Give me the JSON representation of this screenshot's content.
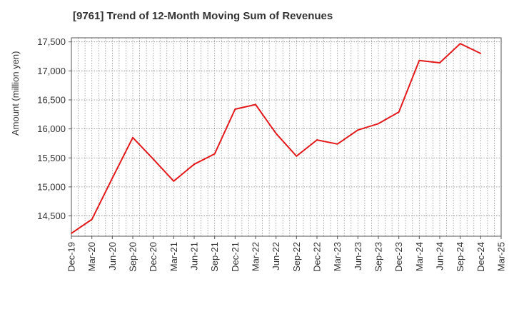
{
  "chart_data": {
    "type": "line",
    "title": "[9761]  Trend of 12-Month Moving Sum of Revenues",
    "xlabel": "",
    "ylabel": "Amount (million yen)",
    "ylim": [
      14150,
      17570
    ],
    "yticks": [
      14500,
      15000,
      15500,
      16000,
      16500,
      17000,
      17500
    ],
    "ytick_labels": [
      "14,500",
      "15,000",
      "15,500",
      "16,000",
      "16,500",
      "17,000",
      "17,500"
    ],
    "xtick_labels": [
      "Dec-19",
      "Mar-20",
      "Jun-20",
      "Sep-20",
      "Dec-20",
      "Mar-21",
      "Jun-21",
      "Sep-21",
      "Dec-21",
      "Mar-22",
      "Jun-22",
      "Sep-22",
      "Dec-22",
      "Mar-23",
      "Jun-23",
      "Sep-23",
      "Dec-23",
      "Mar-24",
      "Jun-24",
      "Sep-24",
      "Dec-24",
      "Mar-25"
    ],
    "x": [
      "Dec-19",
      "Mar-20",
      "Jun-20",
      "Sep-20",
      "Dec-20",
      "Mar-21",
      "Jun-21",
      "Sep-21",
      "Dec-21",
      "Mar-22",
      "Jun-22",
      "Sep-22",
      "Dec-22",
      "Mar-23",
      "Jun-23",
      "Sep-23",
      "Dec-23",
      "Mar-24",
      "Jun-24",
      "Sep-24",
      "Dec-24"
    ],
    "series": [
      {
        "values": [
          14200,
          14440,
          15150,
          15850,
          15480,
          15100,
          15390,
          15570,
          16340,
          16420,
          15920,
          15530,
          15810,
          15740,
          15980,
          16090,
          16290,
          17180,
          17140,
          17470,
          17300
        ],
        "color": "#e31a1c"
      }
    ],
    "grid": true,
    "gridstyle": "dotted",
    "minor_x_gridlines": 2,
    "legend": "none"
  }
}
